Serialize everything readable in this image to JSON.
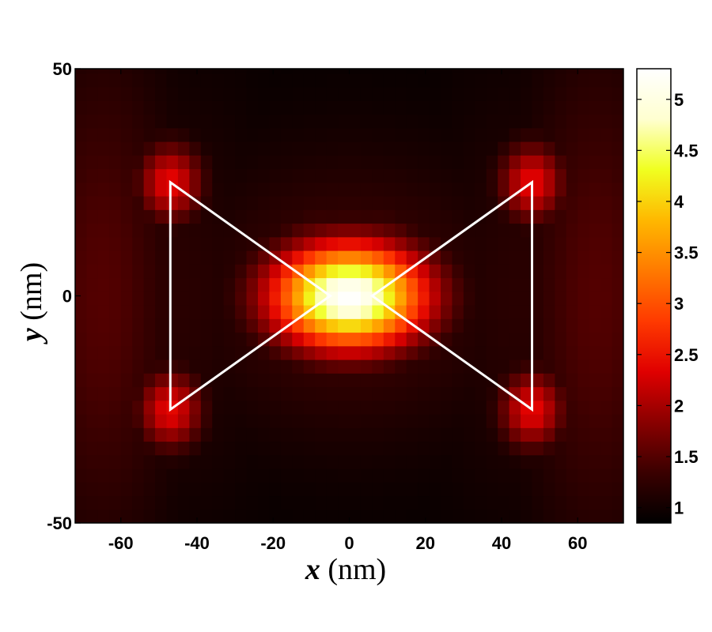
{
  "chart_data": {
    "type": "heatmap",
    "title": "",
    "xlabel": {
      "var": "x",
      "unit": " (nm)"
    },
    "ylabel": {
      "var": "y",
      "unit": " (nm)"
    },
    "xlim": [
      -72,
      72
    ],
    "ylim": [
      -50,
      50
    ],
    "x_ticks": [
      -60,
      -40,
      -20,
      0,
      20,
      40,
      60
    ],
    "x_tick_labels": [
      "-60",
      "-40",
      "-20",
      "0",
      "20",
      "40",
      "60"
    ],
    "y_ticks": [
      50,
      0,
      -50
    ],
    "y_tick_labels": [
      "50",
      "0",
      "-50"
    ],
    "colorbar": {
      "range": [
        0.85,
        5.3
      ],
      "ticks": [
        1,
        1.5,
        2,
        2.5,
        3,
        3.5,
        4,
        4.5,
        5
      ],
      "tick_labels": [
        "1",
        "1.5",
        "2",
        "2.5",
        "3",
        "3.5",
        "4",
        "4.5",
        "5"
      ],
      "colormap": [
        "#000000",
        "#3a0000",
        "#8a0000",
        "#e00000",
        "#ff3a00",
        "#ff7a00",
        "#ffb800",
        "#f0ff20",
        "#ffffd0",
        "#ffffff"
      ]
    },
    "hotspots": [
      {
        "x": 0,
        "y": 0,
        "value": 5.3,
        "sx": 14,
        "sy": 8
      },
      {
        "x": -8,
        "y": 1,
        "value": 3.0,
        "sx": 9,
        "sy": 9
      },
      {
        "x": 8,
        "y": 1,
        "value": 3.0,
        "sx": 9,
        "sy": 9
      },
      {
        "x": -47,
        "y": 25,
        "value": 2.4,
        "sx": 6,
        "sy": 6
      },
      {
        "x": -47,
        "y": -25,
        "value": 2.4,
        "sx": 6,
        "sy": 6
      },
      {
        "x": 48,
        "y": 25,
        "value": 2.4,
        "sx": 6,
        "sy": 6
      },
      {
        "x": 48,
        "y": -25,
        "value": 2.4,
        "sx": 6,
        "sy": 6
      },
      {
        "x": -65,
        "y": 0,
        "value": 1.5,
        "sx": 14,
        "sy": 40
      },
      {
        "x": 65,
        "y": 0,
        "value": 1.5,
        "sx": 14,
        "sy": 40
      },
      {
        "x": 0,
        "y": 0,
        "value": 1.4,
        "sx": 30,
        "sy": 22
      },
      {
        "x": -45,
        "y": 0,
        "value": 1.2,
        "sx": 18,
        "sy": 32
      },
      {
        "x": 45,
        "y": 0,
        "value": 1.2,
        "sx": 18,
        "sy": 32
      }
    ],
    "outlines": [
      {
        "name": "left-triangle",
        "points": [
          [
            -47,
            25
          ],
          [
            -47,
            -25
          ],
          [
            -5,
            0
          ]
        ]
      },
      {
        "name": "right-triangle",
        "points": [
          [
            48,
            25
          ],
          [
            48,
            -25
          ],
          [
            6,
            0
          ]
        ]
      }
    ],
    "background_value": 0.9
  }
}
